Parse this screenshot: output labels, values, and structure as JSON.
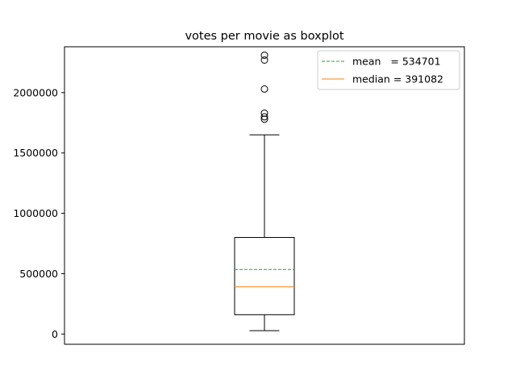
{
  "chart_data": {
    "type": "boxplot",
    "title": "votes per movie as boxplot",
    "xlabel": "",
    "ylabel": "",
    "ylim": [
      -85000,
      2380000
    ],
    "yticks": [
      0,
      500000,
      1000000,
      1500000,
      2000000
    ],
    "ytick_labels": [
      "0",
      "500000",
      "1000000",
      "1500000",
      "2000000"
    ],
    "grid": false,
    "box": {
      "whisker_low": 28000,
      "q1": 160000,
      "median": 391082,
      "mean": 534701,
      "q3": 800000,
      "whisker_high": 1650000,
      "outliers": [
        1780000,
        1800000,
        1830000,
        2030000,
        2270000,
        2310000
      ]
    },
    "legend": {
      "placement": "upper right",
      "entries": [
        {
          "label": "mean   = 534701",
          "color": "#2ca02c",
          "style": "dashed"
        },
        {
          "label": "median = 391082",
          "color": "#ff7f0e",
          "style": "solid"
        }
      ]
    }
  }
}
